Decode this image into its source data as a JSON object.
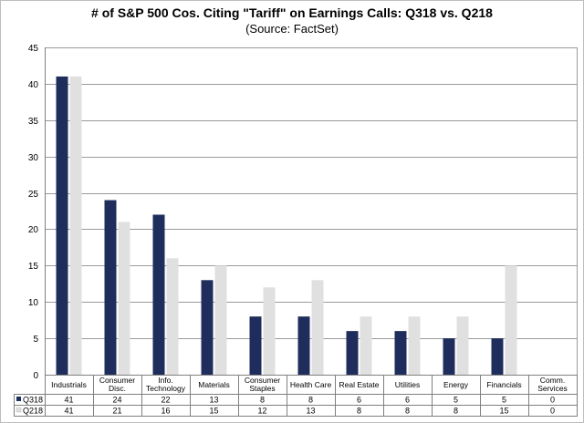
{
  "chart_data": {
    "type": "bar",
    "title": "# of S&P 500 Cos. Citing \"Tariff\" on Earnings Calls: Q318 vs. Q218",
    "subtitle": "(Source: FactSet)",
    "xlabel": "",
    "ylabel": "",
    "ylim": [
      0,
      45
    ],
    "yticks": [
      0,
      5,
      10,
      15,
      20,
      25,
      30,
      35,
      40,
      45
    ],
    "grid": true,
    "legend": "data-table",
    "categories": [
      [
        "Industrials"
      ],
      [
        "Consumer",
        "Disc."
      ],
      [
        "Info.",
        "Technology"
      ],
      [
        "Materials"
      ],
      [
        "Consumer",
        "Staples"
      ],
      [
        "Health Care"
      ],
      [
        "Real Estate"
      ],
      [
        "Utilities"
      ],
      [
        "Energy"
      ],
      [
        "Financials"
      ],
      [
        "Comm.",
        "Services"
      ]
    ],
    "series": [
      {
        "name": "Q318",
        "color": "#1f2d5c",
        "values": [
          41,
          24,
          22,
          13,
          8,
          8,
          6,
          6,
          5,
          5,
          0
        ]
      },
      {
        "name": "Q218",
        "color": "#e0e0e0",
        "values": [
          41,
          21,
          16,
          15,
          12,
          13,
          8,
          8,
          8,
          15,
          0
        ]
      }
    ]
  }
}
